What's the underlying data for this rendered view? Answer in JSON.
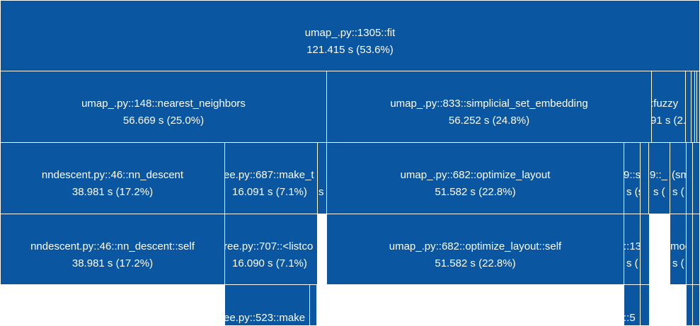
{
  "colors": {
    "node": "#0b56a1",
    "border": "#ffffff",
    "background": "#ffffff"
  },
  "nodes": {
    "fit": {
      "name": "umap_.py::1305::fit",
      "time": "121.415 s (53.6%)"
    },
    "nn": {
      "name": "umap_.py::148::nearest_neighbors",
      "time": "56.669 s (25.0%)"
    },
    "sse": {
      "name": "umap_.py::833::simplicial_set_embedding",
      "time": "56.252 s (24.8%)"
    },
    "fuzzy": {
      "name": ":fuzzy",
      "time": "91 s (2."
    },
    "nnd": {
      "name": "nndescent.py::46::nn_descent",
      "time": "38.981 s (17.2%)"
    },
    "mk_tree": {
      "name": "ee.py::687::make_t",
      "time": "16.091 s (7.1%)"
    },
    "opt": {
      "name": "umap_.py::682::optimize_layout",
      "time": "51.582 s (22.8%)"
    },
    "nnd_self": {
      "name": "nndescent.py::46::nn_descent::self",
      "time": "38.981 s (17.2%)"
    },
    "listcomp": {
      "name": "ree.py::707::<listco",
      "time": "16.090 s (7.1%)"
    },
    "opt_self": {
      "name": "umap_.py::682::optimize_layout::self",
      "time": "51.582 s (22.8%)"
    },
    "mk_tree523": {
      "name": "ee.py::523::make",
      "time": ""
    },
    "sml_a": {
      "name": "9::s",
      "time": "s (s"
    },
    "sml_b": {
      "name": "9::_",
      "time": "s ("
    },
    "sml_c": {
      "name": "(sm",
      "time": "s ("
    },
    "sml_d": {
      "name": "::13",
      "time": "s ("
    },
    "sml_e": {
      "name": "mod",
      "time": "s ("
    },
    "sml_f": {
      "name": "::5",
      "time": ""
    },
    "tiny_s": {
      "name": "",
      "time": "s"
    }
  }
}
